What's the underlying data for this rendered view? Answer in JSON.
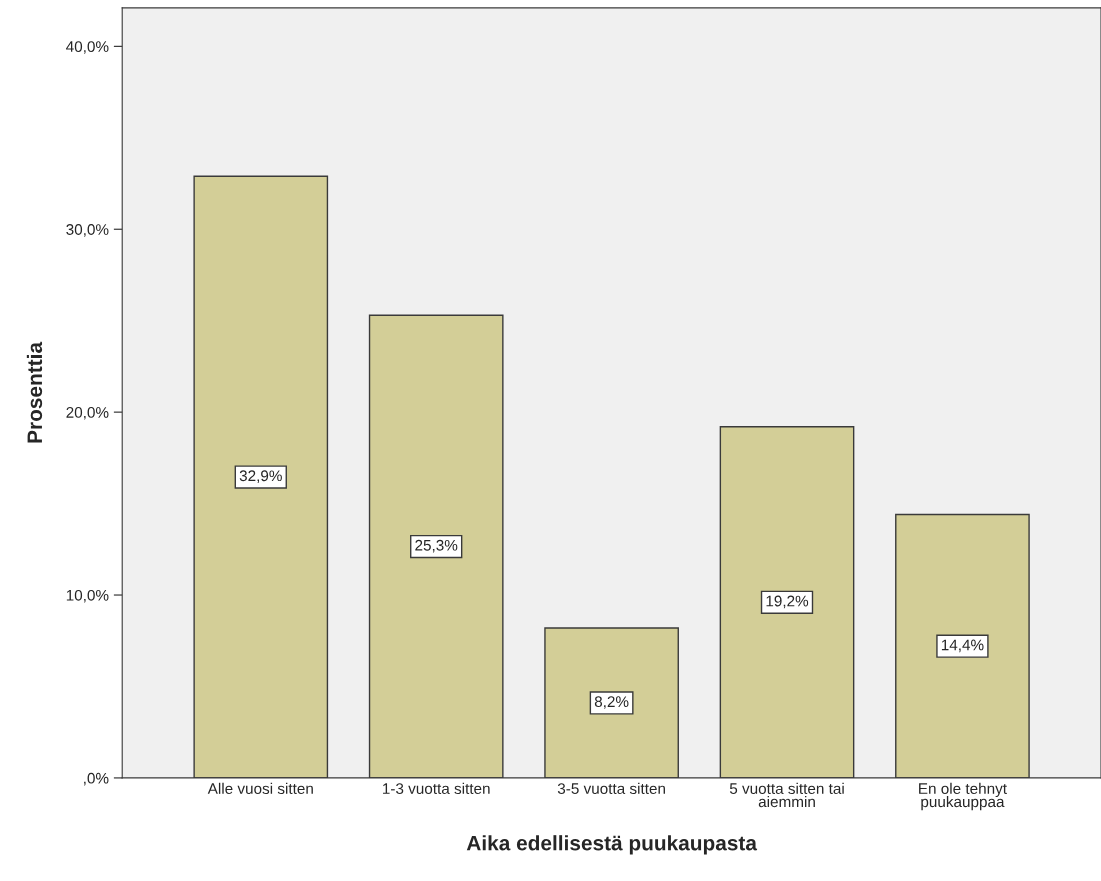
{
  "chart_data": {
    "type": "bar",
    "xlabel": "Aika edellisestä puukaupasta",
    "ylabel": "Prosenttia",
    "categories": [
      "Alle vuosi sitten",
      "1-3 vuotta sitten",
      "3-5 vuotta sitten",
      "5 vuotta sitten tai\naiemmin",
      "En ole tehnyt\npuukauppaa"
    ],
    "values": [
      32.9,
      25.3,
      8.2,
      19.2,
      14.4
    ],
    "value_labels": [
      "32,9%",
      "25,3%",
      "8,2%",
      "19,2%",
      "14,4%"
    ],
    "color": "#d3ce97",
    "ylim": [
      0,
      42.1
    ],
    "yticks": [
      {
        "value": 0,
        "label": ",0%"
      },
      {
        "value": 10,
        "label": "10,0%"
      },
      {
        "value": 20,
        "label": "20,0%"
      },
      {
        "value": 30,
        "label": "30,0%"
      },
      {
        "value": 40,
        "label": "40,0%"
      }
    ],
    "grid": false,
    "legend": false
  }
}
